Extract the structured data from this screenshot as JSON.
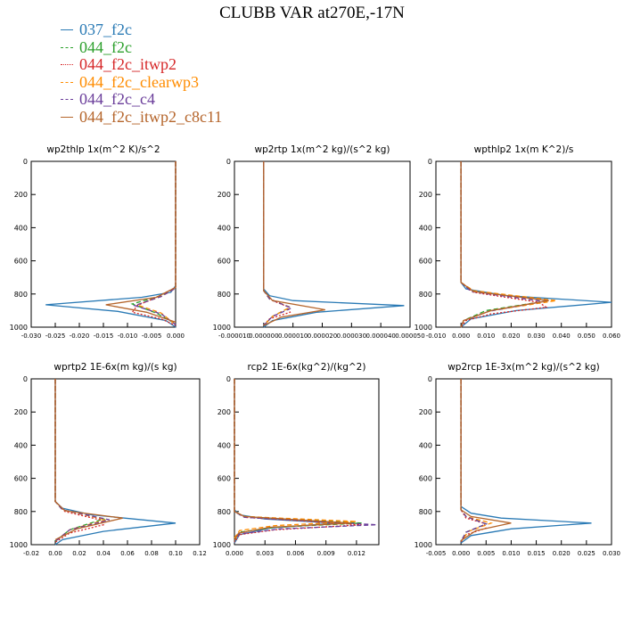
{
  "title": "CLUBB VAR at270E,-17N",
  "legend": [
    {
      "name": "037_f2c",
      "color": "#2a7ab5",
      "dash": "solid"
    },
    {
      "name": "044_f2c",
      "color": "#2ca02c",
      "dash": "dash"
    },
    {
      "name": "044_f2c_itwp2",
      "color": "#d62728",
      "dash": "dot"
    },
    {
      "name": "044_f2c_clearwp3",
      "color": "#ff8c00",
      "dash": "dash"
    },
    {
      "name": "044_f2c_c4",
      "color": "#6a3d9a",
      "dash": "dash"
    },
    {
      "name": "044_f2c_itwp2_c8c11",
      "color": "#b5652b",
      "dash": "solid"
    }
  ],
  "chart_data": [
    {
      "type": "line",
      "title": "wp2thlp   1x(m^2 K)/s^2",
      "ylim": [
        1000,
        0
      ],
      "xlim": [
        -0.03,
        0.0
      ],
      "yticks": [
        0,
        200,
        400,
        600,
        800,
        1000
      ],
      "xtick_labels": [
        "-0.030",
        "-0.025",
        "-0.020",
        "-0.015",
        "-0.010",
        "-0.005",
        "0.000"
      ],
      "xtick_values": [
        -0.03,
        -0.025,
        -0.02,
        -0.015,
        -0.01,
        -0.005,
        0.0
      ],
      "grid": false,
      "series": [
        {
          "name": "037_f2c",
          "x": [
            0,
            0,
            -0.001,
            -0.007,
            -0.027,
            -0.012,
            -0.002,
            0
          ],
          "y": [
            0,
            750,
            790,
            820,
            865,
            905,
            960,
            1000
          ]
        },
        {
          "name": "044_f2c",
          "x": [
            0,
            0,
            -0.003,
            -0.009,
            -0.004,
            0
          ],
          "y": [
            0,
            760,
            810,
            860,
            915,
            980
          ]
        },
        {
          "name": "044_f2c_itwp2",
          "x": [
            0,
            0,
            -0.004,
            -0.008,
            -0.009,
            -0.003,
            0
          ],
          "y": [
            0,
            760,
            820,
            870,
            910,
            950,
            990
          ]
        },
        {
          "name": "044_f2c_clearwp3",
          "x": [
            0,
            0,
            -0.003,
            -0.008,
            -0.003,
            0
          ],
          "y": [
            0,
            765,
            815,
            865,
            915,
            985
          ]
        },
        {
          "name": "044_f2c_c4",
          "x": [
            0,
            0,
            -0.003,
            -0.0085,
            -0.003,
            0
          ],
          "y": [
            0,
            765,
            815,
            870,
            920,
            985
          ]
        },
        {
          "name": "044_f2c_itwp2_c8c11",
          "x": [
            0,
            0,
            -0.004,
            -0.0145,
            -0.006,
            0
          ],
          "y": [
            0,
            760,
            820,
            865,
            910,
            970
          ]
        }
      ]
    },
    {
      "type": "line",
      "title": "wp2rtp   1x(m^2 kg)/(s^2 kg)",
      "ylim": [
        1000,
        0
      ],
      "xlim": [
        -1e-05,
        5e-05
      ],
      "yticks": [
        0,
        200,
        400,
        600,
        800,
        1000
      ],
      "xtick_labels": [
        "-0.000010",
        "0.000000",
        "0.000010",
        "0.000020",
        "0.000030",
        "0.000040",
        "0.000050"
      ],
      "xtick_values": [
        -1e-05,
        0.0,
        1e-05,
        2e-05,
        3e-05,
        4e-05,
        5e-05
      ],
      "grid": false,
      "series": [
        {
          "name": "037_f2c",
          "x": [
            0,
            0,
            2e-06,
            1e-05,
            4.8e-05,
            1.8e-05,
            3e-06,
            0
          ],
          "y": [
            0,
            770,
            810,
            840,
            870,
            910,
            960,
            1000
          ]
        },
        {
          "name": "044_f2c",
          "x": [
            0,
            0,
            2e-06,
            9e-06,
            3e-06,
            0
          ],
          "y": [
            0,
            780,
            830,
            880,
            935,
            990
          ]
        },
        {
          "name": "044_f2c_itwp2",
          "x": [
            0,
            0,
            3e-06,
            8e-06,
            9e-06,
            2e-06,
            0
          ],
          "y": [
            0,
            780,
            840,
            875,
            910,
            950,
            990
          ]
        },
        {
          "name": "044_f2c_clearwp3",
          "x": [
            0,
            0,
            2e-06,
            9e-06,
            3e-06,
            0
          ],
          "y": [
            0,
            780,
            830,
            880,
            935,
            990
          ]
        },
        {
          "name": "044_f2c_c4",
          "x": [
            0,
            0,
            2e-06,
            9.5e-06,
            3e-06,
            0
          ],
          "y": [
            0,
            780,
            830,
            885,
            935,
            990
          ]
        },
        {
          "name": "044_f2c_itwp2_c8c11",
          "x": [
            0,
            0,
            3e-06,
            2.1e-05,
            6e-06,
            0
          ],
          "y": [
            0,
            780,
            840,
            895,
            940,
            990
          ]
        }
      ]
    },
    {
      "type": "line",
      "title": "wpthlp2   1x(m K^2)/s",
      "ylim": [
        1000,
        0
      ],
      "xlim": [
        -0.01,
        0.06
      ],
      "yticks": [
        0,
        200,
        400,
        600,
        800,
        1000
      ],
      "xtick_labels": [
        "-0.010",
        "0.000",
        "0.010",
        "0.020",
        "0.030",
        "0.040",
        "0.050",
        "0.060"
      ],
      "xtick_values": [
        -0.01,
        0.0,
        0.01,
        0.02,
        0.03,
        0.04,
        0.05,
        0.06
      ],
      "grid": false,
      "series": [
        {
          "name": "037_f2c",
          "x": [
            0,
            0,
            0.002,
            0.018,
            0.06,
            0.022,
            0.004,
            0
          ],
          "y": [
            0,
            730,
            770,
            810,
            850,
            900,
            950,
            1000
          ]
        },
        {
          "name": "044_f2c",
          "x": [
            0,
            0,
            0.004,
            0.035,
            0.01,
            0.001,
            0
          ],
          "y": [
            0,
            730,
            780,
            840,
            900,
            960,
            1000
          ]
        },
        {
          "name": "044_f2c_itwp2",
          "x": [
            0,
            0,
            0.005,
            0.031,
            0.034,
            0.012,
            0.002,
            0
          ],
          "y": [
            0,
            730,
            790,
            850,
            880,
            920,
            960,
            1000
          ]
        },
        {
          "name": "044_f2c_clearwp3",
          "x": [
            0,
            0,
            0.005,
            0.038,
            0.012,
            0.001,
            0
          ],
          "y": [
            0,
            730,
            780,
            840,
            900,
            960,
            1000
          ]
        },
        {
          "name": "044_f2c_c4",
          "x": [
            0,
            0,
            0.004,
            0.033,
            0.011,
            0.001,
            0
          ],
          "y": [
            0,
            730,
            785,
            845,
            905,
            960,
            1000
          ]
        },
        {
          "name": "044_f2c_itwp2_c8c11",
          "x": [
            0,
            0,
            0.005,
            0.035,
            0.012,
            0.001,
            0
          ],
          "y": [
            0,
            730,
            785,
            840,
            900,
            960,
            1000
          ]
        }
      ]
    },
    {
      "type": "line",
      "title": "wprtp2   1E-6x(m kg)/(s kg)",
      "ylim": [
        1000,
        0
      ],
      "xlim": [
        -0.02,
        0.12
      ],
      "yticks": [
        0,
        200,
        400,
        600,
        800,
        1000
      ],
      "xtick_labels": [
        "-0.02",
        "0.00",
        "0.02",
        "0.04",
        "0.06",
        "0.08",
        "0.10",
        "0.12"
      ],
      "xtick_values": [
        -0.02,
        0.0,
        0.02,
        0.04,
        0.06,
        0.08,
        0.1,
        0.12
      ],
      "grid": false,
      "series": [
        {
          "name": "037_f2c",
          "x": [
            0,
            0,
            0.006,
            0.03,
            0.1,
            0.04,
            0.006,
            0
          ],
          "y": [
            0,
            740,
            780,
            820,
            870,
            920,
            970,
            1000
          ]
        },
        {
          "name": "044_f2c",
          "x": [
            0,
            0,
            0.006,
            0.04,
            0.012,
            0
          ],
          "y": [
            0,
            740,
            790,
            845,
            910,
            980
          ]
        },
        {
          "name": "044_f2c_itwp2",
          "x": [
            0,
            0,
            0.008,
            0.037,
            0.04,
            0.012,
            0
          ],
          "y": [
            0,
            740,
            800,
            850,
            880,
            930,
            985
          ]
        },
        {
          "name": "044_f2c_clearwp3",
          "x": [
            0,
            0,
            0.006,
            0.042,
            0.012,
            0
          ],
          "y": [
            0,
            740,
            790,
            850,
            910,
            980
          ]
        },
        {
          "name": "044_f2c_c4",
          "x": [
            0,
            0,
            0.006,
            0.045,
            0.012,
            0
          ],
          "y": [
            0,
            740,
            790,
            850,
            910,
            980
          ]
        },
        {
          "name": "044_f2c_itwp2_c8c11",
          "x": [
            0,
            0,
            0.008,
            0.056,
            0.018,
            0
          ],
          "y": [
            0,
            740,
            795,
            840,
            905,
            970
          ]
        }
      ]
    },
    {
      "type": "line",
      "title": "rcp2   1E-6x(kg^2)/(kg^2)",
      "ylim": [
        1000,
        0
      ],
      "xlim": [
        0.0,
        0.0142
      ],
      "yticks": [
        0,
        200,
        400,
        600,
        800,
        1000
      ],
      "xtick_labels": [
        "0.000",
        "0.003",
        "0.006",
        "0.009",
        "0.012"
      ],
      "xtick_values": [
        0.0,
        0.003,
        0.006,
        0.009,
        0.012
      ],
      "grid": false,
      "series": [
        {
          "name": "037_f2c",
          "x": [
            0,
            0,
            0.0005,
            0.003,
            0.01,
            0.0035,
            0.0005,
            0
          ],
          "y": [
            0,
            790,
            820,
            845,
            870,
            900,
            940,
            990
          ]
        },
        {
          "name": "044_f2c",
          "x": [
            0,
            0,
            0.001,
            0.0125,
            0.004,
            0.0005,
            0
          ],
          "y": [
            0,
            800,
            830,
            870,
            895,
            925,
            970
          ]
        },
        {
          "name": "044_f2c_itwp2",
          "x": [
            0,
            0,
            0.001,
            0.0125,
            0.004,
            0.0005,
            0
          ],
          "y": [
            0,
            800,
            835,
            880,
            910,
            940,
            985
          ]
        },
        {
          "name": "044_f2c_clearwp3",
          "x": [
            0,
            0,
            0.001,
            0.012,
            0.004,
            0.0005,
            0
          ],
          "y": [
            0,
            800,
            830,
            860,
            885,
            915,
            960
          ]
        },
        {
          "name": "044_f2c_c4",
          "x": [
            0,
            0,
            0.001,
            0.014,
            0.0045,
            0.0005,
            0
          ],
          "y": [
            0,
            800,
            835,
            880,
            905,
            935,
            975
          ]
        },
        {
          "name": "044_f2c_itwp2_c8c11",
          "x": [
            0,
            0,
            0.001,
            0.0115,
            0.0035,
            0.0004,
            0
          ],
          "y": [
            0,
            800,
            830,
            870,
            895,
            930,
            975
          ]
        }
      ]
    },
    {
      "type": "line",
      "title": "wp2rcp   1E-3x(m^2 kg)/(s^2 kg)",
      "ylim": [
        1000,
        0
      ],
      "xlim": [
        -0.005,
        0.03
      ],
      "yticks": [
        0,
        200,
        400,
        600,
        800,
        1000
      ],
      "xtick_labels": [
        "-0.005",
        "0.000",
        "0.005",
        "0.010",
        "0.015",
        "0.020",
        "0.025",
        "0.030"
      ],
      "xtick_values": [
        -0.005,
        0.0,
        0.005,
        0.01,
        0.015,
        0.02,
        0.025,
        0.03
      ],
      "grid": false,
      "series": [
        {
          "name": "037_f2c",
          "x": [
            0,
            0,
            0.002,
            0.008,
            0.026,
            0.01,
            0.002,
            0
          ],
          "y": [
            0,
            770,
            810,
            840,
            870,
            905,
            945,
            990
          ]
        },
        {
          "name": "044_f2c",
          "x": [
            0,
            0,
            0.001,
            0.005,
            0.001,
            0
          ],
          "y": [
            0,
            790,
            830,
            875,
            925,
            980
          ]
        },
        {
          "name": "044_f2c_itwp2",
          "x": [
            0,
            0,
            0.001,
            0.0045,
            0.005,
            0.001,
            0
          ],
          "y": [
            0,
            790,
            840,
            870,
            900,
            940,
            985
          ]
        },
        {
          "name": "044_f2c_clearwp3",
          "x": [
            0,
            0,
            0.001,
            0.006,
            0.0015,
            0
          ],
          "y": [
            0,
            790,
            830,
            870,
            920,
            980
          ]
        },
        {
          "name": "044_f2c_c4",
          "x": [
            0,
            0,
            0.001,
            0.005,
            0.001,
            0
          ],
          "y": [
            0,
            790,
            830,
            875,
            925,
            980
          ]
        },
        {
          "name": "044_f2c_itwp2_c8c11",
          "x": [
            0,
            0,
            0.002,
            0.01,
            0.003,
            0
          ],
          "y": [
            0,
            790,
            830,
            870,
            915,
            975
          ]
        }
      ]
    }
  ]
}
